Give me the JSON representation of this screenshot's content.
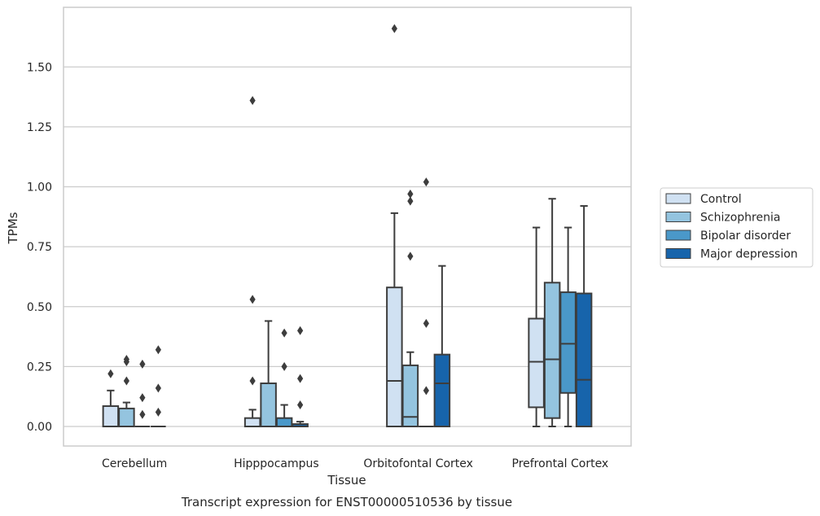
{
  "chart_data": {
    "type": "box",
    "xlabel": "Tissue",
    "ylabel": "TPMs",
    "caption": "Transcript expression for ENST00000510536 by tissue",
    "ylim": [
      -0.08,
      1.75
    ],
    "yticks": [
      0.0,
      0.25,
      0.5,
      0.75,
      1.0,
      1.25,
      1.5
    ],
    "ytick_labels": [
      "0.00",
      "0.25",
      "0.50",
      "0.75",
      "1.00",
      "1.25",
      "1.50"
    ],
    "grid": "horizontal",
    "legend_position": "right",
    "categories": [
      "Cerebellum",
      "Hipppocampus",
      "Orbitofontal Cortex",
      "Prefrontal Cortex"
    ],
    "series": [
      {
        "name": "Control",
        "color": "#d0e1f2",
        "boxes": [
          {
            "q1": 0.0,
            "median": 0.0,
            "q3": 0.085,
            "whisker_low": 0.0,
            "whisker_high": 0.15,
            "outliers": [
              0.22
            ]
          },
          {
            "q1": 0.0,
            "median": 0.0,
            "q3": 0.035,
            "whisker_low": 0.0,
            "whisker_high": 0.07,
            "outliers": [
              0.19,
              0.53,
              1.36
            ]
          },
          {
            "q1": 0.0,
            "median": 0.19,
            "q3": 0.58,
            "whisker_low": 0.0,
            "whisker_high": 0.89,
            "outliers": [
              1.66
            ]
          },
          {
            "q1": 0.08,
            "median": 0.27,
            "q3": 0.45,
            "whisker_low": 0.0,
            "whisker_high": 0.83,
            "outliers": []
          }
        ]
      },
      {
        "name": "Schizophrenia",
        "color": "#94c4df",
        "boxes": [
          {
            "q1": 0.0,
            "median": 0.0,
            "q3": 0.075,
            "whisker_low": 0.0,
            "whisker_high": 0.1,
            "outliers": [
              0.19,
              0.27,
              0.28
            ]
          },
          {
            "q1": 0.0,
            "median": 0.0,
            "q3": 0.18,
            "whisker_low": 0.0,
            "whisker_high": 0.44,
            "outliers": []
          },
          {
            "q1": 0.0,
            "median": 0.04,
            "q3": 0.255,
            "whisker_low": 0.0,
            "whisker_high": 0.31,
            "outliers": [
              0.71,
              0.94,
              0.97
            ]
          },
          {
            "q1": 0.035,
            "median": 0.28,
            "q3": 0.6,
            "whisker_low": 0.0,
            "whisker_high": 0.95,
            "outliers": []
          }
        ]
      },
      {
        "name": "Bipolar disorder",
        "color": "#4a98c9",
        "boxes": [
          {
            "q1": 0.0,
            "median": 0.0,
            "q3": 0.0,
            "whisker_low": 0.0,
            "whisker_high": 0.0,
            "outliers": [
              0.05,
              0.12,
              0.26
            ]
          },
          {
            "q1": 0.0,
            "median": 0.0,
            "q3": 0.035,
            "whisker_low": 0.0,
            "whisker_high": 0.09,
            "outliers": [
              0.25,
              0.39
            ]
          },
          {
            "q1": 0.0,
            "median": 0.0,
            "q3": 0.0,
            "whisker_low": 0.0,
            "whisker_high": 0.0,
            "outliers": [
              0.15,
              0.43,
              1.02
            ]
          },
          {
            "q1": 0.14,
            "median": 0.345,
            "q3": 0.56,
            "whisker_low": 0.0,
            "whisker_high": 0.83,
            "outliers": []
          }
        ]
      },
      {
        "name": "Major depression",
        "color": "#1764ab",
        "boxes": [
          {
            "q1": 0.0,
            "median": 0.0,
            "q3": 0.0,
            "whisker_low": 0.0,
            "whisker_high": 0.0,
            "outliers": [
              0.06,
              0.16,
              0.32
            ]
          },
          {
            "q1": 0.0,
            "median": 0.0,
            "q3": 0.01,
            "whisker_low": 0.0,
            "whisker_high": 0.02,
            "outliers": [
              0.09,
              0.2,
              0.4
            ]
          },
          {
            "q1": 0.0,
            "median": 0.18,
            "q3": 0.3,
            "whisker_low": 0.0,
            "whisker_high": 0.67,
            "outliers": []
          },
          {
            "q1": 0.0,
            "median": 0.195,
            "q3": 0.555,
            "whisker_low": 0.0,
            "whisker_high": 0.92,
            "outliers": []
          }
        ]
      }
    ]
  }
}
